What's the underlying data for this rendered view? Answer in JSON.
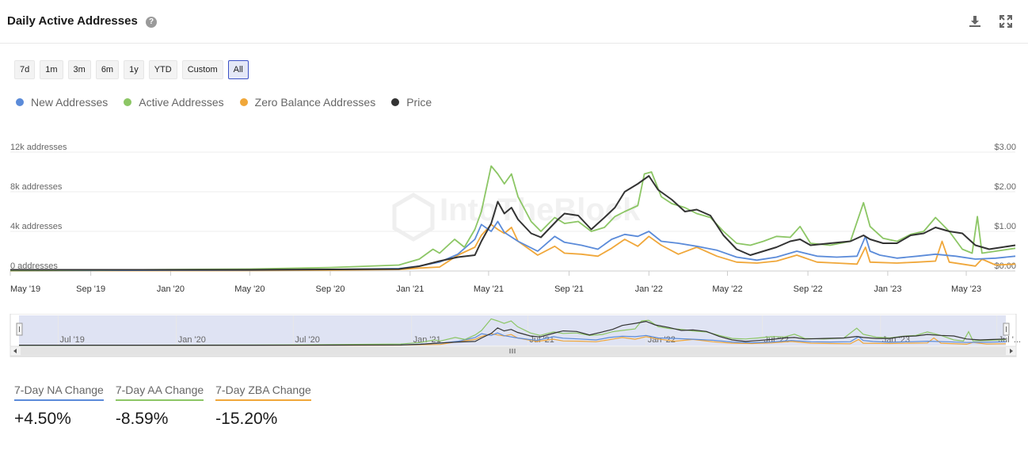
{
  "header": {
    "title": "Daily Active Addresses",
    "help_icon": "question-circle-icon",
    "download_icon": "download-icon",
    "expand_icon": "expand-icon"
  },
  "range_buttons": [
    {
      "label": "7d",
      "active": false
    },
    {
      "label": "1m",
      "active": false
    },
    {
      "label": "3m",
      "active": false
    },
    {
      "label": "6m",
      "active": false
    },
    {
      "label": "1y",
      "active": false
    },
    {
      "label": "YTD",
      "active": false
    },
    {
      "label": "Custom",
      "active": false
    },
    {
      "label": "All",
      "active": true
    }
  ],
  "legend": [
    {
      "label": "New Addresses",
      "color": "#5b8bd9"
    },
    {
      "label": "Active Addresses",
      "color": "#8cc665"
    },
    {
      "label": "Zero Balance Addresses",
      "color": "#f0a73a"
    },
    {
      "label": "Price",
      "color": "#333333"
    }
  ],
  "watermark": "IntoTheBlock",
  "chart_data": {
    "type": "line",
    "x_tick_labels": [
      "May '19",
      "Sep '19",
      "Jan '20",
      "May '20",
      "Sep '20",
      "Jan '21",
      "May '21",
      "Sep '21",
      "Jan '22",
      "May '22",
      "Sep '22",
      "Jan '23",
      "May '23"
    ],
    "x_tick_dates": [
      "2019-05-01",
      "2019-09-01",
      "2020-01-01",
      "2020-05-01",
      "2020-09-01",
      "2021-01-01",
      "2021-05-01",
      "2021-09-01",
      "2022-01-01",
      "2022-05-01",
      "2022-09-01",
      "2023-01-01",
      "2023-05-01"
    ],
    "x_range": [
      "2019-05-01",
      "2023-07-15"
    ],
    "y_left_ticks": [
      "0 addresses",
      "4k addresses",
      "8k addresses",
      "12k addresses"
    ],
    "y_left_range": [
      0,
      12000
    ],
    "y_right_ticks": [
      "$0.00",
      "$1.00",
      "$2.00",
      "$3.00"
    ],
    "y_right_range": [
      0,
      3
    ],
    "grid": true,
    "legend_position": "top-left",
    "series": [
      {
        "name": "New Addresses",
        "axis": "left",
        "color": "#5b8bd9",
        "points": [
          [
            "2019-05-01",
            40
          ],
          [
            "2019-09-01",
            60
          ],
          [
            "2020-01-01",
            80
          ],
          [
            "2020-05-01",
            100
          ],
          [
            "2020-09-01",
            150
          ],
          [
            "2020-12-15",
            250
          ],
          [
            "2021-01-15",
            500
          ],
          [
            "2021-02-15",
            900
          ],
          [
            "2021-03-15",
            1700
          ],
          [
            "2021-04-10",
            3200
          ],
          [
            "2021-04-20",
            4700
          ],
          [
            "2021-05-05",
            4000
          ],
          [
            "2021-05-15",
            5000
          ],
          [
            "2021-05-25",
            3900
          ],
          [
            "2021-06-15",
            3000
          ],
          [
            "2021-07-15",
            2000
          ],
          [
            "2021-08-10",
            3500
          ],
          [
            "2021-08-25",
            2900
          ],
          [
            "2021-09-20",
            2600
          ],
          [
            "2021-10-15",
            2200
          ],
          [
            "2021-11-05",
            3200
          ],
          [
            "2021-11-25",
            3700
          ],
          [
            "2021-12-15",
            3500
          ],
          [
            "2022-01-01",
            4000
          ],
          [
            "2022-01-20",
            3000
          ],
          [
            "2022-02-15",
            2800
          ],
          [
            "2022-03-15",
            2500
          ],
          [
            "2022-04-15",
            2100
          ],
          [
            "2022-05-15",
            1400
          ],
          [
            "2022-06-15",
            1100
          ],
          [
            "2022-07-15",
            1400
          ],
          [
            "2022-08-15",
            2000
          ],
          [
            "2022-09-15",
            1500
          ],
          [
            "2022-10-15",
            1400
          ],
          [
            "2022-11-15",
            1500
          ],
          [
            "2022-11-28",
            3500
          ],
          [
            "2022-12-05",
            2000
          ],
          [
            "2022-12-20",
            1600
          ],
          [
            "2023-01-15",
            1300
          ],
          [
            "2023-02-15",
            1500
          ],
          [
            "2023-03-15",
            1700
          ],
          [
            "2023-04-15",
            1500
          ],
          [
            "2023-05-15",
            1200
          ],
          [
            "2023-06-15",
            1300
          ],
          [
            "2023-07-15",
            1500
          ]
        ]
      },
      {
        "name": "Active Addresses",
        "axis": "left",
        "color": "#8cc665",
        "points": [
          [
            "2019-05-01",
            60
          ],
          [
            "2019-09-01",
            90
          ],
          [
            "2020-01-01",
            150
          ],
          [
            "2020-05-01",
            200
          ],
          [
            "2020-09-01",
            350
          ],
          [
            "2020-12-15",
            600
          ],
          [
            "2021-01-15",
            1200
          ],
          [
            "2021-02-05",
            2200
          ],
          [
            "2021-02-15",
            1800
          ],
          [
            "2021-03-10",
            3200
          ],
          [
            "2021-03-25",
            2400
          ],
          [
            "2021-04-10",
            4200
          ],
          [
            "2021-04-20",
            6000
          ],
          [
            "2021-05-05",
            10600
          ],
          [
            "2021-05-15",
            9800
          ],
          [
            "2021-05-25",
            8800
          ],
          [
            "2021-06-05",
            9800
          ],
          [
            "2021-06-15",
            7500
          ],
          [
            "2021-07-05",
            5000
          ],
          [
            "2021-07-20",
            4000
          ],
          [
            "2021-08-10",
            5400
          ],
          [
            "2021-08-25",
            4800
          ],
          [
            "2021-09-15",
            5000
          ],
          [
            "2021-10-05",
            4000
          ],
          [
            "2021-10-25",
            4400
          ],
          [
            "2021-11-10",
            5500
          ],
          [
            "2021-11-25",
            6000
          ],
          [
            "2021-12-15",
            6600
          ],
          [
            "2021-12-25",
            9800
          ],
          [
            "2022-01-05",
            10000
          ],
          [
            "2022-01-20",
            7500
          ],
          [
            "2022-02-05",
            6800
          ],
          [
            "2022-02-25",
            6400
          ],
          [
            "2022-03-15",
            5800
          ],
          [
            "2022-04-05",
            5400
          ],
          [
            "2022-04-25",
            4000
          ],
          [
            "2022-05-15",
            2800
          ],
          [
            "2022-06-05",
            2600
          ],
          [
            "2022-06-25",
            3000
          ],
          [
            "2022-07-15",
            3500
          ],
          [
            "2022-08-05",
            3400
          ],
          [
            "2022-08-20",
            4500
          ],
          [
            "2022-09-05",
            2800
          ],
          [
            "2022-10-05",
            2600
          ],
          [
            "2022-11-05",
            3000
          ],
          [
            "2022-11-25",
            6900
          ],
          [
            "2022-12-05",
            4500
          ],
          [
            "2022-12-25",
            3300
          ],
          [
            "2023-01-15",
            3000
          ],
          [
            "2023-02-05",
            3700
          ],
          [
            "2023-02-25",
            4000
          ],
          [
            "2023-03-15",
            5400
          ],
          [
            "2023-04-05",
            4000
          ],
          [
            "2023-04-25",
            2200
          ],
          [
            "2023-05-10",
            1800
          ],
          [
            "2023-05-18",
            5500
          ],
          [
            "2023-05-25",
            1800
          ],
          [
            "2023-06-15",
            2000
          ],
          [
            "2023-07-15",
            2300
          ]
        ]
      },
      {
        "name": "Zero Balance Addresses",
        "axis": "left",
        "color": "#f0a73a",
        "points": [
          [
            "2019-05-01",
            20
          ],
          [
            "2019-09-01",
            30
          ],
          [
            "2020-01-01",
            40
          ],
          [
            "2020-05-01",
            60
          ],
          [
            "2020-09-01",
            90
          ],
          [
            "2020-12-15",
            150
          ],
          [
            "2021-01-15",
            300
          ],
          [
            "2021-02-15",
            400
          ],
          [
            "2021-03-15",
            1600
          ],
          [
            "2021-04-10",
            2400
          ],
          [
            "2021-04-20",
            3600
          ],
          [
            "2021-05-05",
            4700
          ],
          [
            "2021-05-15",
            4200
          ],
          [
            "2021-05-25",
            3800
          ],
          [
            "2021-06-05",
            4400
          ],
          [
            "2021-06-15",
            3000
          ],
          [
            "2021-07-15",
            1600
          ],
          [
            "2021-08-10",
            2500
          ],
          [
            "2021-08-25",
            1800
          ],
          [
            "2021-09-20",
            1700
          ],
          [
            "2021-10-15",
            1500
          ],
          [
            "2021-11-05",
            2300
          ],
          [
            "2021-11-25",
            3200
          ],
          [
            "2021-12-15",
            2500
          ],
          [
            "2022-01-01",
            3500
          ],
          [
            "2022-01-20",
            2600
          ],
          [
            "2022-02-15",
            1700
          ],
          [
            "2022-03-15",
            2400
          ],
          [
            "2022-04-15",
            1500
          ],
          [
            "2022-05-15",
            900
          ],
          [
            "2022-06-15",
            800
          ],
          [
            "2022-07-15",
            1000
          ],
          [
            "2022-08-15",
            1600
          ],
          [
            "2022-09-15",
            900
          ],
          [
            "2022-10-15",
            800
          ],
          [
            "2022-11-15",
            700
          ],
          [
            "2022-11-28",
            2400
          ],
          [
            "2022-12-05",
            900
          ],
          [
            "2023-01-15",
            800
          ],
          [
            "2023-02-15",
            900
          ],
          [
            "2023-03-15",
            1000
          ],
          [
            "2023-03-25",
            3000
          ],
          [
            "2023-04-05",
            900
          ],
          [
            "2023-05-15",
            500
          ],
          [
            "2023-05-25",
            1200
          ],
          [
            "2023-06-15",
            600
          ],
          [
            "2023-07-15",
            700
          ]
        ]
      },
      {
        "name": "Price",
        "axis": "right",
        "color": "#333333",
        "points": [
          [
            "2019-05-01",
            0.03
          ],
          [
            "2019-09-01",
            0.03
          ],
          [
            "2020-01-01",
            0.03
          ],
          [
            "2020-05-01",
            0.03
          ],
          [
            "2020-09-01",
            0.04
          ],
          [
            "2020-12-15",
            0.05
          ],
          [
            "2021-01-15",
            0.12
          ],
          [
            "2021-02-15",
            0.25
          ],
          [
            "2021-03-15",
            0.35
          ],
          [
            "2021-04-10",
            0.4
          ],
          [
            "2021-04-20",
            0.75
          ],
          [
            "2021-05-05",
            1.2
          ],
          [
            "2021-05-15",
            1.75
          ],
          [
            "2021-05-25",
            1.45
          ],
          [
            "2021-06-05",
            1.6
          ],
          [
            "2021-06-15",
            1.3
          ],
          [
            "2021-07-05",
            0.95
          ],
          [
            "2021-07-20",
            0.85
          ],
          [
            "2021-08-15",
            1.3
          ],
          [
            "2021-08-25",
            1.45
          ],
          [
            "2021-09-15",
            1.4
          ],
          [
            "2021-10-05",
            1.05
          ],
          [
            "2021-10-25",
            1.35
          ],
          [
            "2021-11-10",
            1.6
          ],
          [
            "2021-11-25",
            2.0
          ],
          [
            "2021-12-15",
            2.2
          ],
          [
            "2022-01-01",
            2.4
          ],
          [
            "2022-01-15",
            2.05
          ],
          [
            "2022-02-05",
            1.8
          ],
          [
            "2022-02-25",
            1.5
          ],
          [
            "2022-03-15",
            1.55
          ],
          [
            "2022-04-05",
            1.4
          ],
          [
            "2022-04-25",
            0.9
          ],
          [
            "2022-05-15",
            0.55
          ],
          [
            "2022-06-05",
            0.4
          ],
          [
            "2022-06-25",
            0.5
          ],
          [
            "2022-07-15",
            0.6
          ],
          [
            "2022-08-05",
            0.75
          ],
          [
            "2022-08-20",
            0.8
          ],
          [
            "2022-09-05",
            0.65
          ],
          [
            "2022-10-05",
            0.7
          ],
          [
            "2022-11-05",
            0.75
          ],
          [
            "2022-11-25",
            0.9
          ],
          [
            "2022-12-05",
            0.8
          ],
          [
            "2022-12-25",
            0.7
          ],
          [
            "2023-01-15",
            0.7
          ],
          [
            "2023-02-05",
            0.9
          ],
          [
            "2023-02-25",
            0.95
          ],
          [
            "2023-03-15",
            1.1
          ],
          [
            "2023-04-05",
            1.0
          ],
          [
            "2023-04-25",
            0.95
          ],
          [
            "2023-05-15",
            0.65
          ],
          [
            "2023-06-05",
            0.55
          ],
          [
            "2023-06-25",
            0.6
          ],
          [
            "2023-07-15",
            0.65
          ]
        ]
      }
    ]
  },
  "navigator": {
    "tick_labels": [
      "Jul '19",
      "Jan '20",
      "Jul '20",
      "Jan '21",
      "Jul '21",
      "Jan '22",
      "Jul '22",
      "Jan '23",
      "Jul '..."
    ],
    "tick_dates": [
      "2019-07-01",
      "2020-01-01",
      "2020-07-01",
      "2021-01-01",
      "2021-07-01",
      "2022-01-01",
      "2022-07-01",
      "2023-01-01",
      "2023-07-01"
    ],
    "selection": [
      "2019-05-01",
      "2023-07-15"
    ]
  },
  "stats": [
    {
      "label": "7-Day NA Change",
      "value": "+4.50%",
      "color": "#5b8bd9"
    },
    {
      "label": "7-Day AA Change",
      "value": "-8.59%",
      "color": "#8cc665"
    },
    {
      "label": "7-Day ZBA Change",
      "value": "-15.20%",
      "color": "#f0a73a"
    }
  ]
}
